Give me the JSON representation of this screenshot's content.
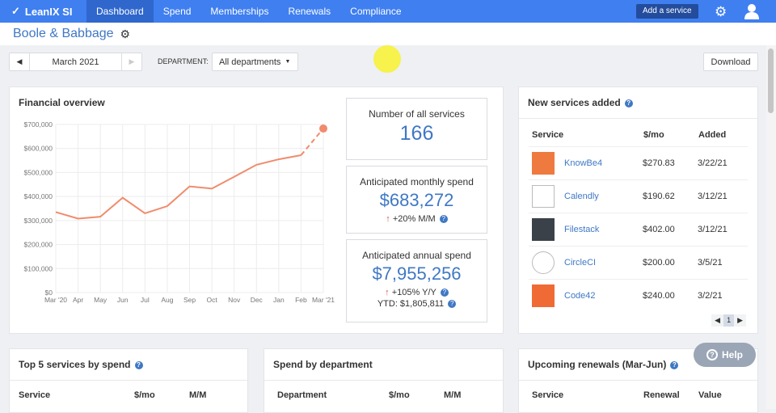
{
  "nav": {
    "brand": "LeanIX SI",
    "items": [
      "Dashboard",
      "Spend",
      "Memberships",
      "Renewals",
      "Compliance"
    ],
    "add_service": "Add a service"
  },
  "company": "Boole & Babbage",
  "controls": {
    "month": "March 2021",
    "department_label": "DEPARTMENT:",
    "department": "All departments",
    "download": "Download"
  },
  "financial": {
    "title": "Financial overview"
  },
  "stats": {
    "services_label": "Number of all services",
    "services": "166",
    "monthly_label": "Anticipated monthly spend",
    "monthly": "$683,272",
    "monthly_change": "+20% M/M",
    "annual_label": "Anticipated annual spend",
    "annual": "$7,955,256",
    "annual_change": "+105% Y/Y",
    "ytd": "YTD: $1,805,811"
  },
  "chart_data": {
    "type": "line",
    "categories": [
      "Mar '20",
      "Apr",
      "May",
      "Jun",
      "Jul",
      "Aug",
      "Sep",
      "Oct",
      "Nov",
      "Dec",
      "Jan",
      "Feb",
      "Mar '21"
    ],
    "values": [
      335000,
      308000,
      316000,
      395000,
      330000,
      360000,
      442000,
      433000,
      482000,
      532000,
      555000,
      572000,
      683000
    ],
    "projected_last": true,
    "yticks": [
      "$0",
      "$100,000",
      "$200,000",
      "$300,000",
      "$400,000",
      "$500,000",
      "$600,000",
      "$700,000"
    ],
    "ylim": [
      0,
      700000
    ],
    "color": "#ef8c6c"
  },
  "new_services": {
    "title": "New services added",
    "headers": [
      "Service",
      "$/mo",
      "Added"
    ],
    "rows": [
      {
        "name": "KnowBe4",
        "price": "$270.83",
        "added": "3/22/21",
        "color": "#ee7a3f"
      },
      {
        "name": "Calendly",
        "price": "$190.62",
        "added": "3/12/21",
        "color": "#ffffff"
      },
      {
        "name": "Filestack",
        "price": "$402.00",
        "added": "3/12/21",
        "color": "#3a4149"
      },
      {
        "name": "CircleCI",
        "price": "$200.00",
        "added": "3/5/21",
        "color": "#ffffff"
      },
      {
        "name": "Code42",
        "price": "$240.00",
        "added": "3/2/21",
        "color": "#ef6a35"
      }
    ],
    "page": "1"
  },
  "top5": {
    "title": "Top 5 services by spend",
    "headers": [
      "Service",
      "$/mo",
      "M/M"
    ]
  },
  "dept": {
    "title": "Spend by department",
    "headers": [
      "Department",
      "$/mo",
      "M/M"
    ]
  },
  "renewals": {
    "title": "Upcoming renewals (Mar-Jun)",
    "headers": [
      "Service",
      "Renewal",
      "Value"
    ]
  },
  "help": "Help"
}
